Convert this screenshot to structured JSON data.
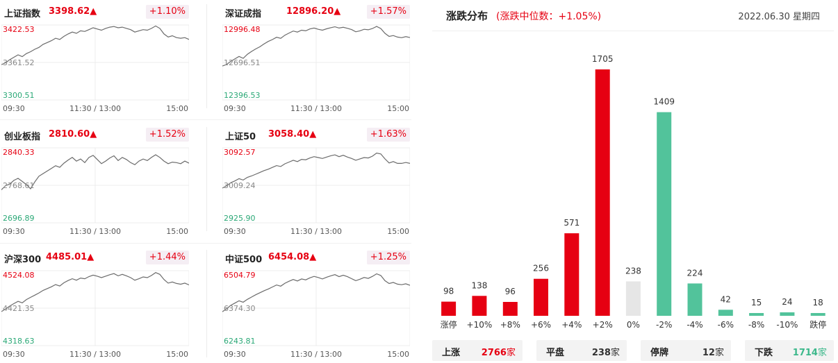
{
  "indices": [
    {
      "name": "上证指数",
      "price": "3398.62",
      "arrow": "▲",
      "change": "+1.10%",
      "y_high": "3422.53",
      "y_mid": "3361.52",
      "y_low": "3300.51",
      "series": [
        3358,
        3361,
        3366,
        3370,
        3374,
        3371,
        3376,
        3379,
        3383,
        3386,
        3391,
        3394,
        3397,
        3401,
        3399,
        3404,
        3408,
        3411,
        3409,
        3413,
        3412,
        3415,
        3418,
        3416,
        3414,
        3417,
        3419,
        3420,
        3418,
        3419,
        3417,
        3415,
        3411,
        3413,
        3415,
        3414,
        3417,
        3421,
        3417,
        3408,
        3403,
        3405,
        3402,
        3401,
        3402,
        3399
      ]
    },
    {
      "name": "深证成指",
      "price": "12896.20",
      "arrow": "▲",
      "change": "+1.57%",
      "y_high": "12996.48",
      "y_mid": "12696.51",
      "y_low": "12396.53",
      "series": [
        12668,
        12680,
        12705,
        12725,
        12745,
        12730,
        12762,
        12785,
        12805,
        12822,
        12845,
        12865,
        12880,
        12898,
        12890,
        12915,
        12932,
        12948,
        12940,
        12955,
        12950,
        12965,
        12972,
        12962,
        12955,
        12966,
        12975,
        12982,
        12972,
        12978,
        12970,
        12960,
        12942,
        12950,
        12962,
        12958,
        12968,
        12985,
        12968,
        12930,
        12905,
        12912,
        12900,
        12895,
        12903,
        12896
      ]
    },
    {
      "name": "创业板指",
      "price": "2810.60",
      "arrow": "▲",
      "change": "+1.52%",
      "y_high": "2840.33",
      "y_mid": "2768.61",
      "y_low": "2696.89",
      "series": [
        2760,
        2768,
        2771,
        2778,
        2782,
        2776,
        2770,
        2762,
        2775,
        2786,
        2791,
        2796,
        2801,
        2806,
        2803,
        2811,
        2817,
        2822,
        2815,
        2819,
        2812,
        2822,
        2826,
        2818,
        2810,
        2815,
        2821,
        2825,
        2816,
        2822,
        2818,
        2812,
        2808,
        2815,
        2819,
        2816,
        2822,
        2827,
        2822,
        2815,
        2810,
        2813,
        2812,
        2810,
        2815,
        2811
      ]
    },
    {
      "name": "上证50",
      "price": "3058.40",
      "arrow": "▲",
      "change": "+1.63%",
      "y_high": "3092.57",
      "y_mid": "3009.24",
      "y_low": "2925.90",
      "series": [
        3003,
        3008,
        3015,
        3019,
        3024,
        3021,
        3027,
        3030,
        3034,
        3038,
        3042,
        3045,
        3049,
        3053,
        3051,
        3057,
        3061,
        3065,
        3062,
        3067,
        3066,
        3070,
        3073,
        3071,
        3069,
        3072,
        3075,
        3077,
        3073,
        3076,
        3072,
        3069,
        3065,
        3068,
        3071,
        3070,
        3074,
        3081,
        3079,
        3068,
        3059,
        3062,
        3058,
        3058,
        3060,
        3058
      ]
    },
    {
      "name": "沪深300",
      "price": "4485.01",
      "arrow": "▲",
      "change": "+1.44%",
      "y_high": "4524.08",
      "y_mid": "4421.35",
      "y_low": "4318.63",
      "series": [
        4412,
        4419,
        4427,
        4434,
        4440,
        4436,
        4445,
        4451,
        4457,
        4463,
        4470,
        4475,
        4480,
        4486,
        4482,
        4491,
        4497,
        4502,
        4498,
        4504,
        4502,
        4508,
        4512,
        4509,
        4505,
        4509,
        4513,
        4516,
        4510,
        4514,
        4510,
        4505,
        4498,
        4502,
        4507,
        4505,
        4511,
        4519,
        4514,
        4500,
        4490,
        4493,
        4489,
        4487,
        4490,
        4485
      ]
    },
    {
      "name": "中证500",
      "price": "6454.08",
      "arrow": "▲",
      "change": "+1.25%",
      "y_high": "6504.79",
      "y_mid": "6374.30",
      "y_low": "6243.81",
      "series": [
        6362,
        6372,
        6384,
        6392,
        6400,
        6395,
        6405,
        6413,
        6421,
        6428,
        6435,
        6441,
        6448,
        6455,
        6451,
        6461,
        6468,
        6474,
        6469,
        6476,
        6473,
        6480,
        6485,
        6481,
        6476,
        6482,
        6487,
        6491,
        6484,
        6489,
        6484,
        6477,
        6470,
        6475,
        6481,
        6478,
        6485,
        6494,
        6488,
        6470,
        6460,
        6464,
        6458,
        6456,
        6459,
        6454
      ]
    }
  ],
  "time_labels": [
    "09:30",
    "11:30 / 13:00",
    "15:00"
  ],
  "distribution": {
    "title": "涨跌分布",
    "subtitle": "(涨跌中位数：+1.05%)",
    "date": "2022.06.30 星期四"
  },
  "chart_data": {
    "type": "bar",
    "categories": [
      "涨停",
      "+10%",
      "+8%",
      "+6%",
      "+4%",
      "+2%",
      "0%",
      "-2%",
      "-4%",
      "-6%",
      "-8%",
      "-10%",
      "跌停"
    ],
    "values": [
      98,
      138,
      96,
      256,
      571,
      1705,
      238,
      1409,
      224,
      42,
      15,
      24,
      18
    ],
    "colors": [
      "#e60012",
      "#e60012",
      "#e60012",
      "#e60012",
      "#e60012",
      "#e60012",
      "#e6e6e6",
      "#52c39b",
      "#52c39b",
      "#52c39b",
      "#52c39b",
      "#52c39b",
      "#52c39b"
    ],
    "ylim": [
      0,
      1705
    ]
  },
  "summary": [
    {
      "label": "上涨",
      "value": "2766",
      "unit": "家",
      "color": "#e60012"
    },
    {
      "label": "平盘",
      "value": "238",
      "unit": "家",
      "color": "#333333"
    },
    {
      "label": "停牌",
      "value": "12",
      "unit": "家",
      "color": "#333333"
    },
    {
      "label": "下跌",
      "value": "1714",
      "unit": "家",
      "color": "#3cb88b"
    }
  ],
  "colors": {
    "up": "#e60012",
    "down": "#52c39b",
    "flat": "#e6e6e6",
    "low_label": "#2aa876"
  }
}
